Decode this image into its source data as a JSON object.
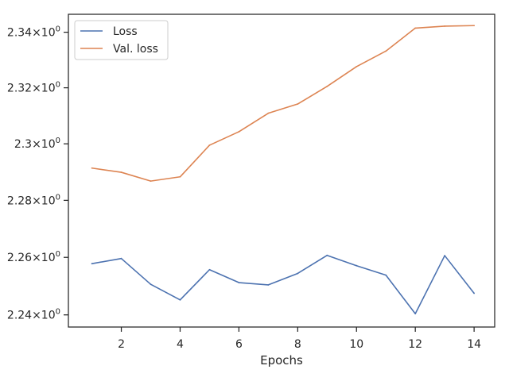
{
  "chart_data": {
    "type": "line",
    "title": "",
    "xlabel": "Epochs",
    "ylabel": "",
    "xlim": [
      0.2,
      14.7
    ],
    "ylim": [
      2.2358,
      2.3465
    ],
    "y_scale": "log",
    "grid": false,
    "legend_position": "top-left",
    "x_ticks": [
      2,
      4,
      6,
      8,
      10,
      12,
      14
    ],
    "x_tick_labels": [
      "2",
      "4",
      "6",
      "8",
      "10",
      "12",
      "14"
    ],
    "y_ticks": [
      2.24,
      2.26,
      2.28,
      2.3,
      2.32,
      2.34
    ],
    "y_tick_labels": [
      {
        "base": "2.24×10",
        "exp": "0"
      },
      {
        "base": "2.26×10",
        "exp": "0"
      },
      {
        "base": "2.28×10",
        "exp": "0"
      },
      {
        "base": "2.3×10",
        "exp": "0"
      },
      {
        "base": "2.32×10",
        "exp": "0"
      },
      {
        "base": "2.34×10",
        "exp": "0"
      }
    ],
    "x": [
      1,
      2,
      3,
      4,
      5,
      6,
      7,
      8,
      9,
      10,
      11,
      12,
      13,
      14
    ],
    "series": [
      {
        "name": "Loss",
        "color": "#4c72b0",
        "values": [
          2.2578,
          2.2596,
          2.2506,
          2.2452,
          2.2557,
          2.2512,
          2.2504,
          2.2544,
          2.2607,
          2.2571,
          2.2538,
          2.2404,
          2.2606,
          2.2475
        ]
      },
      {
        "name": "Val. loss",
        "color": "#dd8452",
        "values": [
          2.2914,
          2.2899,
          2.2868,
          2.2883,
          2.2995,
          2.3043,
          2.3109,
          2.3142,
          2.3205,
          2.3276,
          2.3332,
          2.3415,
          2.3422,
          2.3424
        ]
      }
    ]
  }
}
